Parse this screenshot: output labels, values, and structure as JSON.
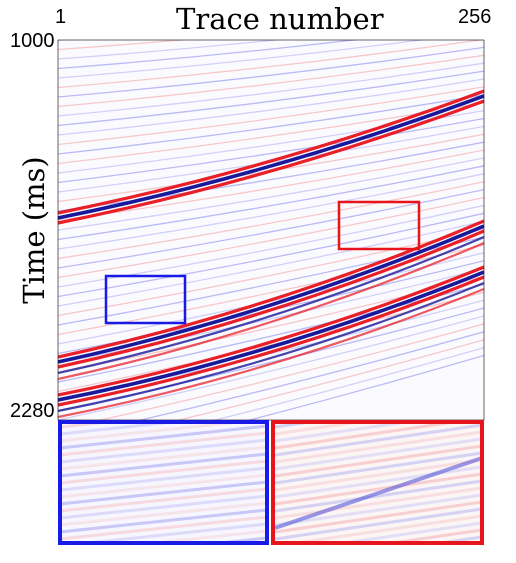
{
  "figure": {
    "title": "Trace number",
    "ylabel": "Time (ms)",
    "x_start": "1",
    "x_end": "256",
    "y_start": "1000",
    "y_end": "2280"
  },
  "colors": {
    "positive": "#e8141c",
    "negative": "#18189a",
    "box_blue": "#1a1ae6",
    "box_red": "#e8141c"
  }
}
